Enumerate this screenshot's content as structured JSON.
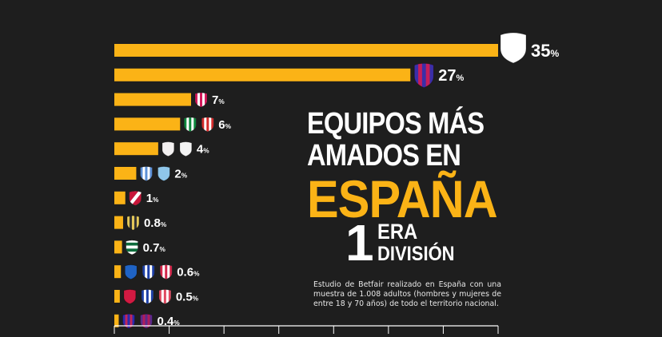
{
  "colors": {
    "background": "#1e1e1e",
    "bar": "#fbb316",
    "text": "#ffffff",
    "accent_title": "#fbb316"
  },
  "header": {
    "title_line1": "EQUIPOS MÁS",
    "title_line2": "AMADOS EN",
    "title_line3": "ESPAÑA",
    "division_number": "1",
    "division_suffix": "ERA",
    "division_name": "DIVISIÓN"
  },
  "footnote": "Estudio de Betfair realizado en España con una muestra de 1.008 adultos (hombres y mujeres de entre 18 y 70 años) de todo el territorio nacional.",
  "chart_data": {
    "type": "bar",
    "orientation": "horizontal",
    "title": "EQUIPOS MÁS AMADOS EN ESPAÑA – 1ERA DIVISIÓN",
    "xlabel": "",
    "ylabel": "",
    "xlim": [
      0,
      35
    ],
    "xticks": [
      0,
      5,
      10,
      15,
      20,
      25,
      30,
      35
    ],
    "grid": false,
    "legend": "none",
    "unit_suffix": "%",
    "categories": [
      "row1",
      "row2",
      "row3",
      "row4",
      "row5",
      "row6",
      "row7",
      "row8",
      "row9",
      "row10",
      "row11",
      "row12"
    ],
    "values": [
      35,
      27,
      7,
      6,
      4,
      2,
      1,
      0.8,
      0.7,
      0.6,
      0.5,
      0.4
    ],
    "labels": [
      "35",
      "27",
      "7",
      "6",
      "4",
      "2",
      "1",
      "0.8",
      "0.7",
      "0.6",
      "0.5",
      "0.4"
    ],
    "crests": [
      [
        {
          "icon": "white-shield-icon",
          "style": "plain",
          "colors": [
            "#ffffff"
          ]
        }
      ],
      [
        {
          "icon": "blaugrana-shield-icon",
          "style": "stripes",
          "colors": [
            "#3a2fa8",
            "#c41e5a"
          ]
        }
      ],
      [
        {
          "icon": "red-white-striped-shield-icon",
          "style": "stripes",
          "colors": [
            "#d2195a",
            "#ffffff"
          ]
        }
      ],
      [
        {
          "icon": "green-white-striped-shield-icon",
          "style": "stripes",
          "colors": [
            "#0e8a3e",
            "#ffffff"
          ]
        },
        {
          "icon": "red-white-striped-shield-icon",
          "style": "stripes",
          "colors": [
            "#d52b2b",
            "#ffffff"
          ]
        }
      ],
      [
        {
          "icon": "white-shield-icon",
          "style": "plain",
          "colors": [
            "#f3f0f0"
          ]
        },
        {
          "icon": "white-shield-icon",
          "style": "plain",
          "colors": [
            "#f3f3f3"
          ]
        }
      ],
      [
        {
          "icon": "sky-blue-white-striped-shield-icon",
          "style": "stripes",
          "colors": [
            "#5b8fd6",
            "#ffffff"
          ]
        },
        {
          "icon": "sky-blue-shield-icon",
          "style": "plain",
          "colors": [
            "#8fc6ea"
          ]
        }
      ],
      [
        {
          "icon": "red-white-diagonal-shield-icon",
          "style": "diagonal",
          "colors": [
            "#c8163a",
            "#ffffff"
          ]
        }
      ],
      [
        {
          "icon": "yellow-black-striped-shield-icon",
          "style": "stripes",
          "colors": [
            "#e5c95a",
            "#333333"
          ]
        }
      ],
      [
        {
          "icon": "green-white-hooped-shield-icon",
          "style": "hoops",
          "colors": [
            "#0d6b3b",
            "#ffffff"
          ]
        }
      ],
      [
        {
          "icon": "blue-shield-icon",
          "style": "plain",
          "colors": [
            "#1f63c4"
          ]
        },
        {
          "icon": "blue-white-striped-shield-icon",
          "style": "stripes",
          "colors": [
            "#1c3fa8",
            "#ffffff"
          ]
        },
        {
          "icon": "red-white-striped-shield-icon",
          "style": "stripes",
          "colors": [
            "#d2264a",
            "#ffffff"
          ]
        }
      ],
      [
        {
          "icon": "red-shield-icon",
          "style": "plain",
          "colors": [
            "#d21a42"
          ]
        },
        {
          "icon": "blue-white-striped-shield-icon",
          "style": "stripes",
          "colors": [
            "#1c3fa8",
            "#ffffff"
          ]
        },
        {
          "icon": "red-white-striped-shield-icon",
          "style": "stripes",
          "colors": [
            "#e04a60",
            "#ffffff"
          ]
        }
      ],
      [
        {
          "icon": "blue-red-shield-icon",
          "style": "stripes",
          "colors": [
            "#2a2ab0",
            "#c0265a"
          ]
        },
        {
          "icon": "blue-purple-shield-icon",
          "style": "stripes",
          "colors": [
            "#5a2a8a",
            "#b01c5a"
          ]
        }
      ]
    ]
  }
}
